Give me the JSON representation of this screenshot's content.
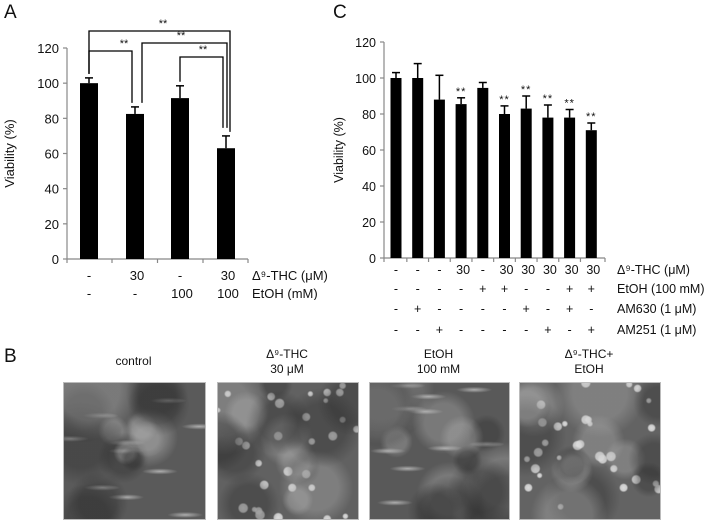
{
  "panels": {
    "A": {
      "letter": "A"
    },
    "B": {
      "letter": "B"
    },
    "C": {
      "letter": "C"
    }
  },
  "chart_data": [
    {
      "panel": "A",
      "type": "bar",
      "ylabel": "Viability (%)",
      "ylim": [
        0,
        120
      ],
      "yticks": [
        0,
        20,
        40,
        60,
        80,
        100,
        120
      ],
      "categories": [
        "control",
        "THC 30",
        "EtOH 100",
        "THC 30 + EtOH 100"
      ],
      "values": [
        100,
        82.5,
        91.5,
        63
      ],
      "errors": [
        3,
        4,
        7,
        7
      ],
      "condition_rows": [
        {
          "label": "Δ⁹-THC (μM)",
          "values": [
            "-",
            "30",
            "-",
            "30"
          ]
        },
        {
          "label": "EtOH (mM)",
          "values": [
            "-",
            "-",
            "100",
            "100"
          ]
        }
      ],
      "significance": [
        {
          "from": 0,
          "to": 3,
          "label": "**"
        },
        {
          "from": 0,
          "to": 1,
          "label": "**"
        },
        {
          "from": 1,
          "to": 3,
          "label": "**"
        },
        {
          "from": 2,
          "to": 3,
          "label": "**"
        }
      ]
    },
    {
      "panel": "C",
      "type": "bar",
      "ylabel": "Viability (%)",
      "ylim": [
        0,
        120
      ],
      "yticks": [
        0,
        20,
        40,
        60,
        80,
        100,
        120
      ],
      "values": [
        100,
        100,
        88,
        85.5,
        94.5,
        80,
        83,
        78,
        78,
        71
      ],
      "errors": [
        3,
        8,
        13.5,
        3.5,
        3,
        4.5,
        7,
        7,
        4.5,
        4
      ],
      "significant": [
        false,
        false,
        false,
        true,
        false,
        true,
        true,
        true,
        true,
        true
      ],
      "sig_label": "**",
      "condition_rows": [
        {
          "label": "Δ⁹-THC (μM)",
          "values": [
            "-",
            "-",
            "-",
            "30",
            "-",
            "30",
            "30",
            "30",
            "30",
            "30"
          ]
        },
        {
          "label": "EtOH (100 mM)",
          "values": [
            "-",
            "-",
            "-",
            "-",
            "+",
            "+",
            "-",
            "-",
            "+",
            "+"
          ]
        },
        {
          "label": "AM630 (1 μM)",
          "values": [
            "-",
            "+",
            "-",
            "-",
            "-",
            "-",
            "+",
            "-",
            "+",
            "-"
          ]
        },
        {
          "label": "AM251 (1 μM)",
          "values": [
            "-",
            "-",
            "+",
            "-",
            "-",
            "-",
            "-",
            "+",
            "-",
            "+"
          ]
        }
      ]
    }
  ],
  "micrographs": [
    {
      "line1": "control",
      "line2": ""
    },
    {
      "line1": "Δ⁹-THC",
      "line2": "30 μM"
    },
    {
      "line1": "EtOH",
      "line2": "100 mM"
    },
    {
      "line1": "Δ⁹-THC+",
      "line2": "EtOH"
    }
  ]
}
